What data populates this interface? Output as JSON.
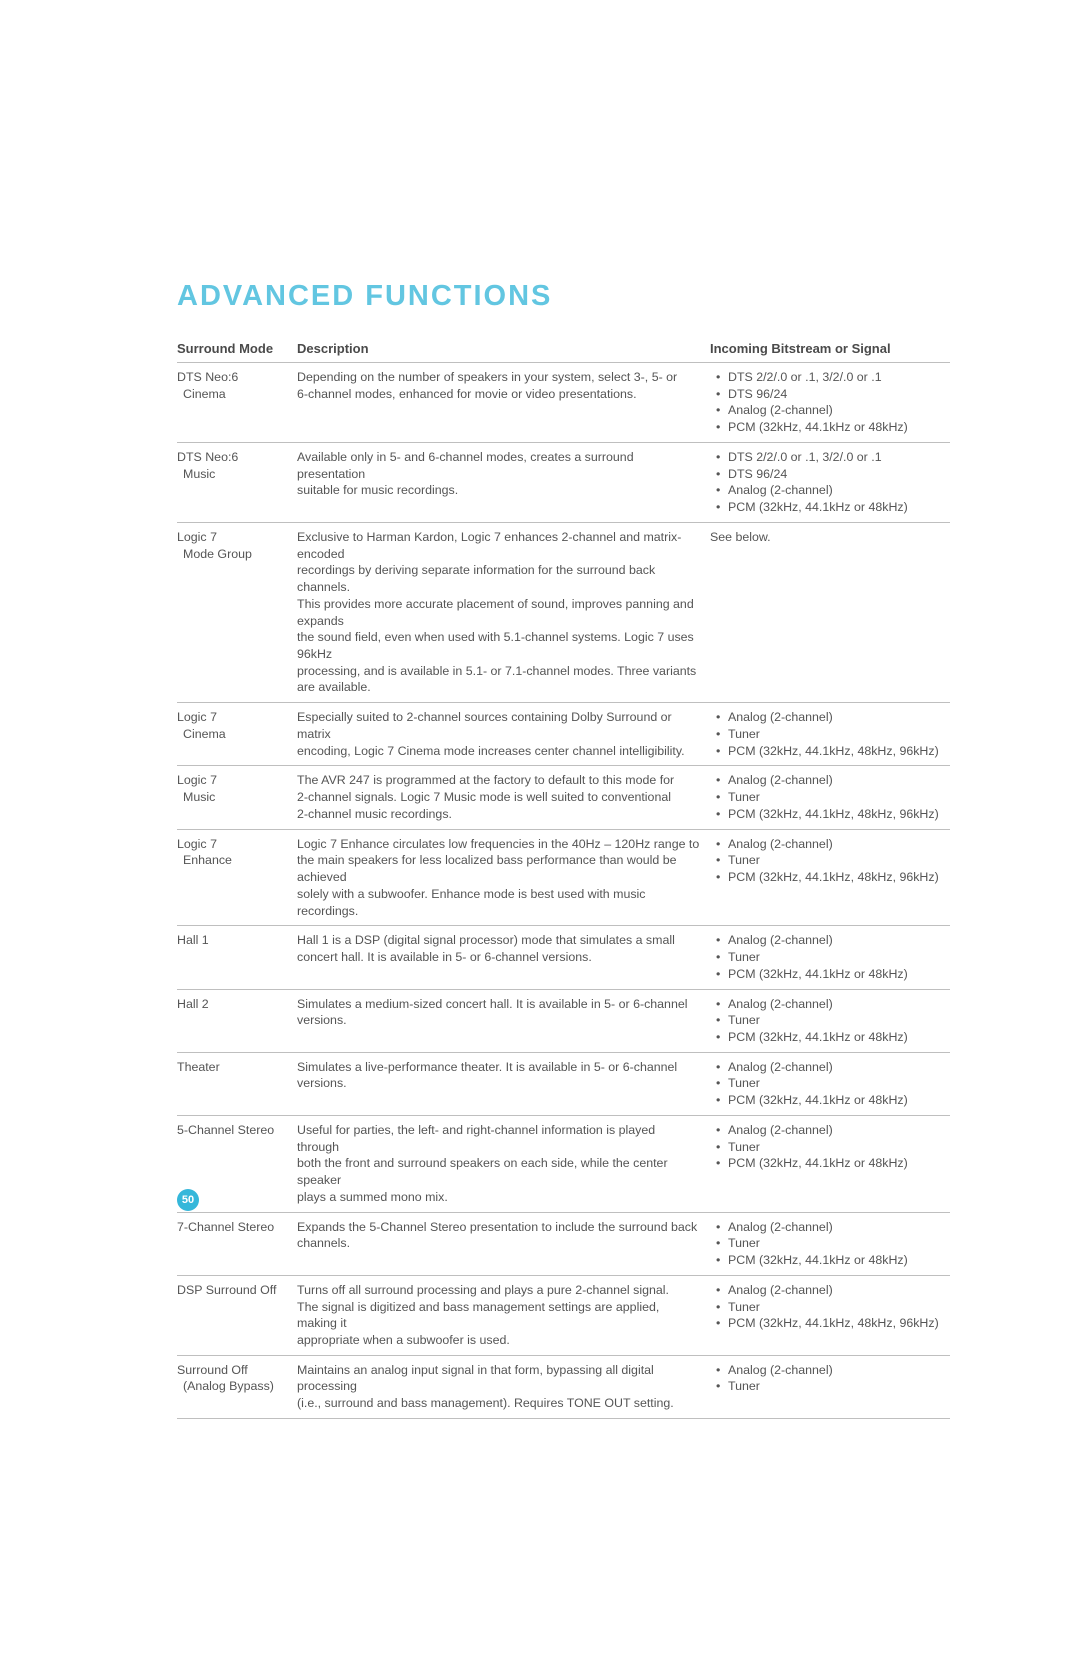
{
  "title": "ADVANCED FUNCTIONS",
  "title_color": "#62c6e1",
  "page_number": "50",
  "badge_color": "#35b7da",
  "columns": {
    "mode": "Surround Mode",
    "desc": "Description",
    "signal": "Incoming Bitstream or Signal"
  },
  "text_color": "#555555",
  "rule_color": "#bfbfbf",
  "rows": [
    {
      "mode": [
        "DTS Neo:6",
        "Cinema"
      ],
      "desc": [
        "Depending on the number of speakers in your system, select 3-, 5- or",
        "6-channel modes, enhanced for movie or video presentations."
      ],
      "signal": [
        "DTS 2/2/.0 or .1, 3/2/.0 or .1",
        "DTS 96/24",
        "Analog (2-channel)",
        "PCM (32kHz, 44.1kHz or 48kHz)"
      ]
    },
    {
      "mode": [
        "DTS Neo:6",
        "Music"
      ],
      "desc": [
        "Available only in 5- and 6-channel modes, creates a surround presentation",
        "suitable for music recordings."
      ],
      "signal": [
        "DTS 2/2/.0 or .1, 3/2/.0 or .1",
        "DTS 96/24",
        "Analog (2-channel)",
        "PCM (32kHz, 44.1kHz or 48kHz)"
      ]
    },
    {
      "mode": [
        "Logic 7",
        "Mode Group"
      ],
      "desc": [
        "Exclusive to Harman Kardon, Logic 7 enhances 2-channel and matrix-encoded",
        "recordings by deriving separate information for the surround back channels.",
        "This provides more accurate placement of sound, improves panning and expands",
        "the sound field, even when used with 5.1-channel systems. Logic 7 uses 96kHz",
        "processing, and is available in 5.1- or 7.1-channel modes. Three variants are available."
      ],
      "signal_plain": "See below."
    },
    {
      "mode": [
        "Logic 7",
        "Cinema"
      ],
      "desc": [
        "Especially suited to 2-channel sources containing Dolby Surround or matrix",
        "encoding, Logic 7 Cinema mode increases center channel intelligibility."
      ],
      "signal": [
        "Analog (2-channel)",
        "Tuner",
        "PCM (32kHz, 44.1kHz, 48kHz, 96kHz)"
      ]
    },
    {
      "mode": [
        "Logic 7",
        "Music"
      ],
      "desc": [
        "The AVR 247 is programmed at the factory to default to this mode for",
        "2-channel signals. Logic 7 Music mode is well suited to conventional",
        "2-channel music recordings."
      ],
      "signal": [
        "Analog (2-channel)",
        "Tuner",
        "PCM (32kHz, 44.1kHz, 48kHz, 96kHz)"
      ]
    },
    {
      "mode": [
        "Logic 7",
        "Enhance"
      ],
      "desc": [
        "Logic 7 Enhance circulates low frequencies in the 40Hz – 120Hz range to",
        "the main speakers for less localized bass performance than would be achieved",
        "solely with a subwoofer. Enhance mode is best used with music recordings."
      ],
      "signal": [
        "Analog (2-channel)",
        "Tuner",
        "PCM (32kHz, 44.1kHz, 48kHz, 96kHz)"
      ]
    },
    {
      "mode": [
        "Hall 1"
      ],
      "desc": [
        "Hall 1 is a DSP (digital signal processor) mode that simulates a small",
        "concert hall. It is available in 5- or 6-channel versions."
      ],
      "signal": [
        "Analog (2-channel)",
        "Tuner",
        "PCM (32kHz, 44.1kHz or 48kHz)"
      ]
    },
    {
      "mode": [
        "Hall 2"
      ],
      "desc": [
        "Simulates a medium-sized concert hall. It is available in 5- or 6-channel",
        "versions."
      ],
      "signal": [
        "Analog (2-channel)",
        "Tuner",
        "PCM (32kHz, 44.1kHz or 48kHz)"
      ]
    },
    {
      "mode": [
        "Theater"
      ],
      "desc": [
        "Simulates a live-performance theater. It is available in 5- or 6-channel",
        "versions."
      ],
      "signal": [
        "Analog (2-channel)",
        "Tuner",
        "PCM (32kHz, 44.1kHz or 48kHz)"
      ]
    },
    {
      "mode": [
        "5-Channel Stereo"
      ],
      "desc": [
        "Useful for parties, the left- and right-channel information is played through",
        "both the front and surround speakers on each side, while the center speaker",
        "plays a summed mono mix."
      ],
      "signal": [
        "Analog (2-channel)",
        "Tuner",
        "PCM (32kHz, 44.1kHz or 48kHz)"
      ]
    },
    {
      "mode": [
        "7-Channel Stereo"
      ],
      "desc": [
        "Expands the 5-Channel Stereo presentation to include the surround back",
        "channels."
      ],
      "signal": [
        "Analog (2-channel)",
        "Tuner",
        "PCM (32kHz, 44.1kHz or 48kHz)"
      ]
    },
    {
      "mode": [
        "DSP Surround Off"
      ],
      "desc": [
        "Turns off all surround processing and plays a pure 2-channel signal.",
        "The signal is digitized and bass management settings are applied, making it",
        "appropriate when a subwoofer is used."
      ],
      "signal": [
        "Analog (2-channel)",
        "Tuner",
        "PCM (32kHz, 44.1kHz, 48kHz, 96kHz)"
      ]
    },
    {
      "mode": [
        "Surround Off",
        "(Analog Bypass)"
      ],
      "desc": [
        "Maintains an analog input signal in that form, bypassing all digital processing",
        "(i.e., surround and bass management). Requires TONE OUT setting."
      ],
      "signal": [
        "Analog (2-channel)",
        "Tuner"
      ]
    }
  ]
}
